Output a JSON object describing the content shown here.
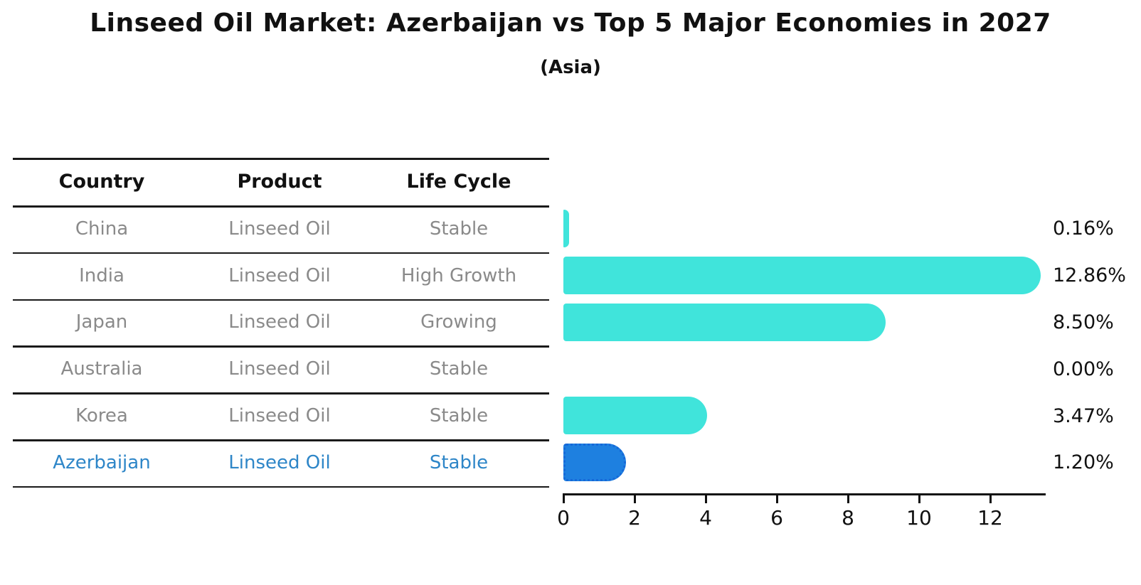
{
  "title": "Linseed Oil Market: Azerbaijan vs Top 5 Major Economies in 2027",
  "subtitle": "(Asia)",
  "table": {
    "headers": [
      "Country",
      "Product",
      "Life Cycle"
    ],
    "rows": [
      {
        "country": "China",
        "product": "Linseed Oil",
        "life_cycle": "Stable",
        "highlight": false
      },
      {
        "country": "India",
        "product": "Linseed Oil",
        "life_cycle": "High Growth",
        "highlight": false
      },
      {
        "country": "Japan",
        "product": "Linseed Oil",
        "life_cycle": "Growing",
        "highlight": false
      },
      {
        "country": "Australia",
        "product": "Linseed Oil",
        "life_cycle": "Stable",
        "highlight": false
      },
      {
        "country": "Korea",
        "product": "Linseed Oil",
        "life_cycle": "Stable",
        "highlight": false
      },
      {
        "country": "Azerbaijan",
        "product": "Linseed Oil",
        "life_cycle": "Stable",
        "highlight": true
      }
    ]
  },
  "chart_data": {
    "type": "bar",
    "orientation": "horizontal",
    "title": "Linseed Oil Market: Azerbaijan vs Top 5 Major Economies in 2027 (Asia)",
    "categories": [
      "China",
      "India",
      "Japan",
      "Australia",
      "Korea",
      "Azerbaijan"
    ],
    "values": [
      0.16,
      12.86,
      8.5,
      0.0,
      3.47,
      1.2
    ],
    "value_labels": [
      "0.16%",
      "12.86%",
      "8.50%",
      "0.00%",
      "3.47%",
      "1.20%"
    ],
    "xlabel": "",
    "ylabel": "",
    "xlim": [
      0,
      13.56
    ],
    "xticks": [
      0,
      2,
      4,
      6,
      8,
      10,
      12
    ],
    "grid": false,
    "legend": "none",
    "bar_color": "#40e4db",
    "highlight_color": "#1e80e0",
    "highlight_border_color": "#1668d8",
    "highlight_index": 5,
    "value_label_color": "#111111"
  },
  "colors": {
    "background": "#ffffff",
    "title_text": "#111111",
    "header_text": "#111111",
    "row_text": "#8a8a8a",
    "highlight_text": "#2e86c8",
    "grid_line": "#1a1a1a",
    "axis": "#111111"
  }
}
